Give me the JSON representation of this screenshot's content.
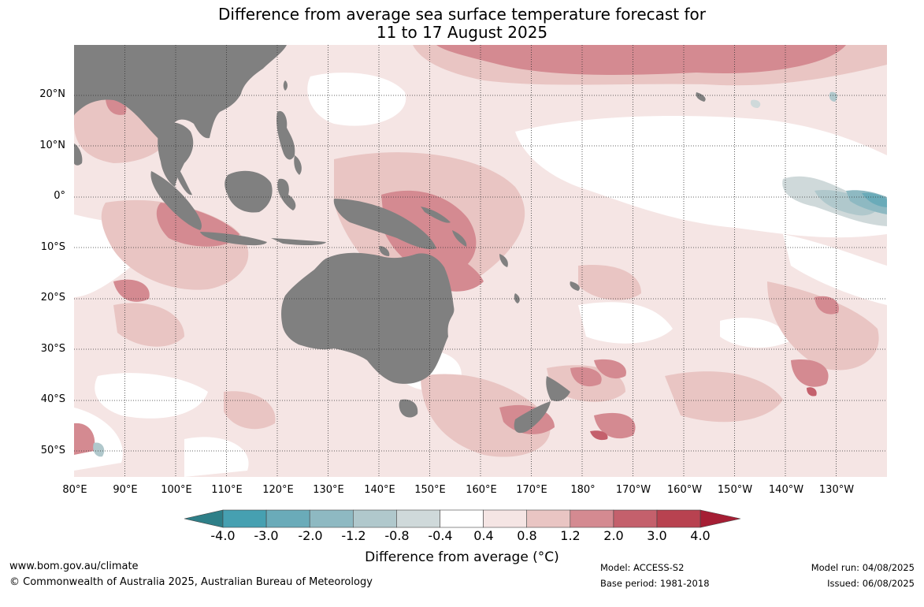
{
  "title": {
    "line1": "Difference from average sea surface temperature forecast for",
    "line2": "11 to 17 August 2025"
  },
  "map": {
    "lat_ticks": [
      "20°N",
      "10°N",
      "0°",
      "10°S",
      "20°S",
      "30°S",
      "40°S",
      "50°S"
    ],
    "lon_ticks": [
      "80°E",
      "90°E",
      "100°E",
      "110°E",
      "120°E",
      "130°E",
      "140°E",
      "150°E",
      "160°E",
      "170°E",
      "180°",
      "170°W",
      "160°W",
      "150°W",
      "140°W",
      "130°W"
    ],
    "lat_range": [
      -55,
      30
    ],
    "lon_range": [
      80,
      240
    ],
    "land_color": "#808080"
  },
  "colorbar": {
    "title": "Difference from average (°C)",
    "labels": [
      "-4.0",
      "-3.0",
      "-2.0",
      "-1.2",
      "-0.8",
      "-0.4",
      "0.4",
      "0.8",
      "1.2",
      "2.0",
      "3.0",
      "4.0"
    ],
    "colors": [
      "#2e7f88",
      "#46a0b1",
      "#6aabb9",
      "#8eb9c2",
      "#b0c8cc",
      "#cfd9da",
      "#ffffff",
      "#f5e5e4",
      "#e9c5c3",
      "#d48a91",
      "#c4606c",
      "#b84250",
      "#a51e34"
    ]
  },
  "footer": {
    "website": "www.bom.gov.au/climate",
    "copyright": "© Commonwealth of Australia 2025, Australian Bureau of Meteorology",
    "model": "Model: ACCESS-S2",
    "base_period": "Base period: 1981-2018",
    "model_run": "Model run: 04/08/2025",
    "issued": "Issued: 06/08/2025"
  }
}
